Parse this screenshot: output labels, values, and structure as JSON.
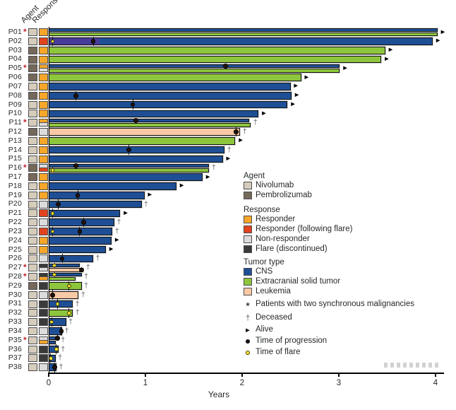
{
  "columns": {
    "agent": "Agent",
    "response": "Response"
  },
  "axis": {
    "label": "Years",
    "ticks": [
      "0",
      "1",
      "2",
      "3",
      "4"
    ]
  },
  "glyphs": {
    "deceased": "†",
    "alive": "►",
    "asterisk": "*"
  },
  "colors": {
    "nivolumab": "#d6ccbc",
    "pembrolizumab": "#75695c",
    "responder": "#f7a629",
    "responder_flare": "#e2421d",
    "non_responder": "#dcdcdc",
    "flare_disc": "#3a3a3a",
    "cns": "#1e4f95",
    "extracranial": "#8dc63c",
    "leukemia": "#f9c9a5",
    "flare_period": "#473c9b",
    "flare_dot": "#f7e435",
    "progression_dot": "#241309"
  },
  "legend": {
    "agent": {
      "title": "Agent",
      "items": [
        {
          "key": "nivolumab",
          "label": "Nivolumab"
        },
        {
          "key": "pembrolizumab",
          "label": "Pembrolizumab"
        }
      ]
    },
    "response": {
      "title": "Response",
      "items": [
        {
          "key": "responder",
          "label": "Responder"
        },
        {
          "key": "responder_flare",
          "label": "Responder (following flare)"
        },
        {
          "key": "non_responder",
          "label": "Non-responder"
        },
        {
          "key": "flare_disc",
          "label": "Flare (discontinued)"
        }
      ]
    },
    "tumor": {
      "title": "Tumor type",
      "items": [
        {
          "key": "cns",
          "label": "CNS"
        },
        {
          "key": "extracranial",
          "label": "Extracranial solid tumor"
        },
        {
          "key": "leukemia",
          "label": "Leukemia"
        }
      ]
    },
    "symbols": [
      {
        "type": "asterisk",
        "glyph": "*",
        "label": "Patients with two synchronous malignancies"
      },
      {
        "type": "dagger",
        "glyph": "†",
        "label": "Deceased"
      },
      {
        "type": "arrow",
        "glyph": "►",
        "label": "Alive"
      },
      {
        "type": "progression",
        "glyph": "",
        "label": "Time of progression"
      },
      {
        "type": "flare",
        "glyph": "",
        "label": "Time of flare"
      }
    ]
  },
  "chart_data": {
    "type": "bar",
    "orientation": "horizontal",
    "xlabel": "Years",
    "xlim": [
      0,
      4.1
    ],
    "xticks": [
      0,
      1,
      2,
      3,
      4
    ],
    "patients": [
      {
        "id": "P01",
        "two_synchronous": true,
        "agent": "nivolumab",
        "response": [
          "responder"
        ],
        "status": "alive",
        "bars": [
          {
            "tumor": "cns",
            "years": 4.02
          },
          {
            "tumor": "extracranial",
            "years": 4.02
          }
        ],
        "progression": [],
        "flare": []
      },
      {
        "id": "P02",
        "two_synchronous": false,
        "agent": "nivolumab",
        "response": [
          "responder_flare"
        ],
        "status": "alive",
        "bars": [
          {
            "tumor": "cns",
            "years": 3.97,
            "segments": [
              {
                "from": 0,
                "to": 0.52,
                "color": "flare_period"
              }
            ]
          }
        ],
        "progression": [
          {
            "bar": 0,
            "years": 0.46
          }
        ],
        "flare": [
          {
            "bar": 0,
            "years": 0.04
          }
        ]
      },
      {
        "id": "P03",
        "two_synchronous": false,
        "agent": "pembrolizumab",
        "response": [
          "responder"
        ],
        "status": "alive",
        "bars": [
          {
            "tumor": "extracranial",
            "years": 3.48
          }
        ],
        "progression": [],
        "flare": []
      },
      {
        "id": "P04",
        "two_synchronous": false,
        "agent": "pembrolizumab",
        "response": [
          "responder"
        ],
        "status": "alive",
        "bars": [
          {
            "tumor": "extracranial",
            "years": 3.44
          }
        ],
        "progression": [],
        "flare": []
      },
      {
        "id": "P05",
        "two_synchronous": true,
        "agent": "pembrolizumab",
        "response": [
          "responder",
          "non_responder"
        ],
        "status": "alive",
        "bars": [
          {
            "tumor": "cns",
            "years": 3.01
          },
          {
            "tumor": "extracranial",
            "years": 3.01
          }
        ],
        "progression": [
          {
            "bar": 0,
            "years": 1.83
          }
        ],
        "flare": []
      },
      {
        "id": "P06",
        "two_synchronous": false,
        "agent": "pembrolizumab",
        "response": [
          "responder"
        ],
        "status": "alive",
        "bars": [
          {
            "tumor": "extracranial",
            "years": 2.61
          }
        ],
        "progression": [],
        "flare": []
      },
      {
        "id": "P07",
        "two_synchronous": false,
        "agent": "nivolumab",
        "response": [
          "responder"
        ],
        "status": "alive",
        "bars": [
          {
            "tumor": "cns",
            "years": 2.5
          }
        ],
        "progression": [],
        "flare": []
      },
      {
        "id": "P08",
        "two_synchronous": false,
        "agent": "pembrolizumab",
        "response": [
          "responder"
        ],
        "status": "alive",
        "bars": [
          {
            "tumor": "cns",
            "years": 2.51
          }
        ],
        "progression": [
          {
            "bar": 0,
            "years": 0.28
          }
        ],
        "flare": []
      },
      {
        "id": "P09",
        "two_synchronous": false,
        "agent": "nivolumab",
        "response": [
          "responder"
        ],
        "status": "alive",
        "bars": [
          {
            "tumor": "cns",
            "years": 2.47
          }
        ],
        "progression": [
          {
            "bar": 0,
            "years": 0.87
          }
        ],
        "flare": []
      },
      {
        "id": "P10",
        "two_synchronous": false,
        "agent": "nivolumab",
        "response": [
          "responder"
        ],
        "status": "alive",
        "bars": [
          {
            "tumor": "cns",
            "years": 2.17
          }
        ],
        "progression": [],
        "flare": []
      },
      {
        "id": "P11",
        "two_synchronous": true,
        "agent": "nivolumab",
        "response": [
          "responder",
          "non_responder"
        ],
        "status": "deceased",
        "bars": [
          {
            "tumor": "cns",
            "years": 2.07
          },
          {
            "tumor": "extracranial",
            "years": 2.09
          }
        ],
        "progression": [
          {
            "bar": 0,
            "years": 0.9
          }
        ],
        "flare": []
      },
      {
        "id": "P12",
        "two_synchronous": false,
        "agent": "pembrolizumab",
        "response": [
          "non_responder"
        ],
        "status": "deceased",
        "bars": [
          {
            "tumor": "leukemia",
            "years": 1.98
          }
        ],
        "progression": [
          {
            "bar": 0,
            "years": 1.94
          }
        ],
        "flare": []
      },
      {
        "id": "P13",
        "two_synchronous": false,
        "agent": "nivolumab",
        "response": [
          "responder"
        ],
        "status": "alive",
        "bars": [
          {
            "tumor": "extracranial",
            "years": 1.93
          }
        ],
        "progression": [],
        "flare": []
      },
      {
        "id": "P14",
        "two_synchronous": false,
        "agent": "nivolumab",
        "response": [
          "responder"
        ],
        "status": "deceased",
        "bars": [
          {
            "tumor": "cns",
            "years": 1.82
          }
        ],
        "progression": [
          {
            "bar": 0,
            "years": 0.83
          }
        ],
        "flare": []
      },
      {
        "id": "P15",
        "two_synchronous": false,
        "agent": "nivolumab",
        "response": [
          "responder"
        ],
        "status": "alive",
        "bars": [
          {
            "tumor": "cns",
            "years": 1.8
          }
        ],
        "progression": [],
        "flare": []
      },
      {
        "id": "P16",
        "two_synchronous": true,
        "agent": "pembrolizumab",
        "response": [
          "non_responder",
          "responder_flare"
        ],
        "status": "deceased",
        "bars": [
          {
            "tumor": "cns",
            "years": 1.66
          },
          {
            "tumor": "extracranial",
            "years": 1.66
          }
        ],
        "progression": [
          {
            "bar": 0,
            "years": 0.28
          }
        ],
        "flare": [
          {
            "bar": 1,
            "years": 0.04
          }
        ]
      },
      {
        "id": "P17",
        "two_synchronous": false,
        "agent": "pembrolizumab",
        "response": [
          "responder"
        ],
        "status": "alive",
        "bars": [
          {
            "tumor": "cns",
            "years": 1.59
          }
        ],
        "progression": [],
        "flare": []
      },
      {
        "id": "P18",
        "two_synchronous": false,
        "agent": "nivolumab",
        "response": [
          "responder"
        ],
        "status": "alive",
        "bars": [
          {
            "tumor": "cns",
            "years": 1.32
          }
        ],
        "progression": [],
        "flare": []
      },
      {
        "id": "P19",
        "two_synchronous": false,
        "agent": "nivolumab",
        "response": [
          "responder"
        ],
        "status": "alive",
        "bars": [
          {
            "tumor": "cns",
            "years": 0.99
          }
        ],
        "progression": [
          {
            "bar": 0,
            "years": 0.3
          }
        ],
        "flare": []
      },
      {
        "id": "P20",
        "two_synchronous": false,
        "agent": "nivolumab",
        "response": [
          "non_responder"
        ],
        "status": "deceased",
        "bars": [
          {
            "tumor": "cns",
            "years": 0.96
          }
        ],
        "progression": [
          {
            "bar": 0,
            "years": 0.1
          }
        ],
        "flare": []
      },
      {
        "id": "P21",
        "two_synchronous": false,
        "agent": "nivolumab",
        "response": [
          "responder_flare"
        ],
        "status": "alive",
        "bars": [
          {
            "tumor": "cns",
            "years": 0.74
          }
        ],
        "progression": [],
        "flare": [
          {
            "bar": 0,
            "years": 0.04
          }
        ]
      },
      {
        "id": "P22",
        "two_synchronous": false,
        "agent": "nivolumab",
        "response": [
          "non_responder"
        ],
        "status": "deceased",
        "bars": [
          {
            "tumor": "cns",
            "years": 0.68
          }
        ],
        "progression": [
          {
            "bar": 0,
            "years": 0.36
          }
        ],
        "flare": []
      },
      {
        "id": "P23",
        "two_synchronous": false,
        "agent": "nivolumab",
        "response": [
          "responder_flare"
        ],
        "status": "deceased",
        "bars": [
          {
            "tumor": "cns",
            "years": 0.66
          }
        ],
        "progression": [
          {
            "bar": 0,
            "years": 0.32
          }
        ],
        "flare": [
          {
            "bar": 0,
            "years": 0.04
          }
        ]
      },
      {
        "id": "P24",
        "two_synchronous": false,
        "agent": "nivolumab",
        "response": [
          "responder"
        ],
        "status": "alive",
        "bars": [
          {
            "tumor": "cns",
            "years": 0.65
          }
        ],
        "progression": [],
        "flare": []
      },
      {
        "id": "P25",
        "two_synchronous": false,
        "agent": "nivolumab",
        "response": [
          "responder"
        ],
        "status": "alive",
        "bars": [
          {
            "tumor": "cns",
            "years": 0.59
          }
        ],
        "progression": [],
        "flare": []
      },
      {
        "id": "P26",
        "two_synchronous": false,
        "agent": "nivolumab",
        "response": [
          "non_responder"
        ],
        "status": "deceased",
        "bars": [
          {
            "tumor": "cns",
            "years": 0.46
          }
        ],
        "progression": [
          {
            "bar": 0,
            "years": 0.14
          }
        ],
        "flare": []
      },
      {
        "id": "P27",
        "two_synchronous": true,
        "agent": "nivolumab",
        "response": [
          "flare_disc",
          "non_responder"
        ],
        "status": "deceased",
        "bars": [
          {
            "tumor": "cns",
            "years": 0.32
          },
          {
            "tumor": "leukemia",
            "years": 0.36
          }
        ],
        "progression": [
          {
            "bar": 1,
            "years": 0.34
          }
        ],
        "flare": [
          {
            "bar": 0,
            "years": 0.06
          }
        ]
      },
      {
        "id": "P28",
        "two_synchronous": true,
        "agent": "nivolumab",
        "response": [
          "flare_disc",
          "responder"
        ],
        "status": "deceased",
        "bars": [
          {
            "tumor": "cns",
            "years": 0.34
          },
          {
            "tumor": "extracranial",
            "years": 0.28
          }
        ],
        "progression": [],
        "flare": [
          {
            "bar": 0,
            "years": 0.06
          }
        ]
      },
      {
        "id": "P29",
        "two_synchronous": false,
        "agent": "pembrolizumab",
        "response": [
          "flare_disc"
        ],
        "status": "deceased",
        "bars": [
          {
            "tumor": "extracranial",
            "years": 0.34
          }
        ],
        "progression": [],
        "flare": [
          {
            "bar": 0,
            "years": 0.21
          }
        ]
      },
      {
        "id": "P30",
        "two_synchronous": false,
        "agent": "nivolumab",
        "response": [
          "non_responder"
        ],
        "status": "deceased",
        "bars": [
          {
            "tumor": "leukemia",
            "years": 0.31
          }
        ],
        "progression": [
          {
            "bar": 0,
            "years": 0.04
          }
        ],
        "flare": []
      },
      {
        "id": "P31",
        "two_synchronous": false,
        "agent": "nivolumab",
        "response": [
          "flare_disc"
        ],
        "status": "deceased",
        "bars": [
          {
            "tumor": "cns",
            "years": 0.25
          }
        ],
        "progression": [],
        "flare": [
          {
            "bar": 0,
            "years": 0.09
          }
        ]
      },
      {
        "id": "P32",
        "two_synchronous": false,
        "agent": "nivolumab",
        "response": [
          "flare_disc"
        ],
        "status": "deceased",
        "bars": [
          {
            "tumor": "extracranial",
            "years": 0.25
          }
        ],
        "progression": [],
        "flare": [
          {
            "bar": 0,
            "years": 0.21
          }
        ]
      },
      {
        "id": "P33",
        "two_synchronous": false,
        "agent": "nivolumab",
        "response": [
          "flare_disc"
        ],
        "status": "deceased",
        "bars": [
          {
            "tumor": "cns",
            "years": 0.18
          }
        ],
        "progression": [],
        "flare": [
          {
            "bar": 0,
            "years": 0.03
          }
        ]
      },
      {
        "id": "P34",
        "two_synchronous": false,
        "agent": "nivolumab",
        "response": [
          "non_responder"
        ],
        "status": "deceased",
        "bars": [
          {
            "tumor": "cns",
            "years": 0.14
          }
        ],
        "progression": [
          {
            "bar": 0,
            "years": 0.13
          }
        ],
        "flare": []
      },
      {
        "id": "P35",
        "two_synchronous": true,
        "agent": "nivolumab",
        "response": [
          "non_responder",
          "responder"
        ],
        "status": "deceased",
        "bars": [
          {
            "tumor": "cns",
            "years": 0.1
          },
          {
            "tumor": "cns",
            "years": 0.07
          }
        ],
        "progression": [
          {
            "bar": 0,
            "years": 0.09
          }
        ],
        "flare": []
      },
      {
        "id": "P36",
        "two_synchronous": false,
        "agent": "nivolumab",
        "response": [
          "flare_disc"
        ],
        "status": "deceased",
        "bars": [
          {
            "tumor": "cns",
            "years": 0.1
          }
        ],
        "progression": [],
        "flare": [
          {
            "bar": 0,
            "years": 0.08
          }
        ]
      },
      {
        "id": "P37",
        "two_synchronous": false,
        "agent": "nivolumab",
        "response": [
          "flare_disc"
        ],
        "status": "deceased",
        "bars": [
          {
            "tumor": "cns",
            "years": 0.07
          }
        ],
        "progression": [],
        "flare": [
          {
            "bar": 0,
            "years": 0.02
          }
        ]
      },
      {
        "id": "P38",
        "two_synchronous": false,
        "agent": "nivolumab",
        "response": [
          "non_responder"
        ],
        "status": "deceased",
        "bars": [
          {
            "tumor": "cns",
            "years": 0.08
          }
        ],
        "progression": [
          {
            "bar": 0,
            "years": 0.06
          }
        ],
        "flare": []
      }
    ]
  }
}
